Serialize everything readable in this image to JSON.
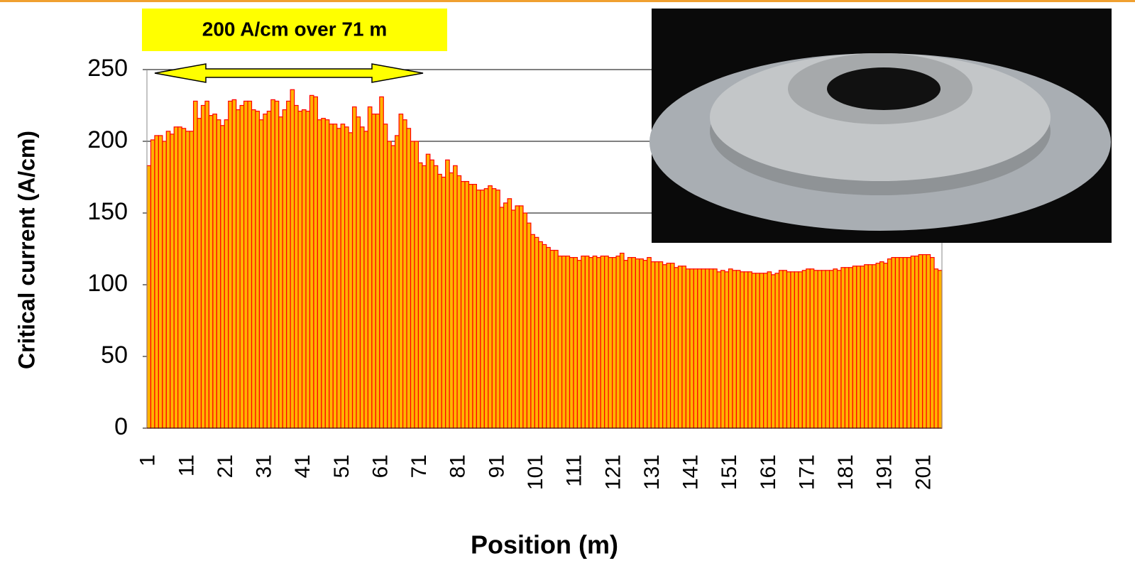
{
  "chart_data": {
    "type": "bar",
    "xlabel": "Position (m)",
    "ylabel": "Critical current (A/cm)",
    "annotation": "200 A/cm over 71 m",
    "categories": [
      "1",
      null,
      null,
      null,
      null,
      null,
      null,
      null,
      null,
      null,
      "11",
      null,
      null,
      null,
      null,
      null,
      null,
      null,
      null,
      null,
      "21",
      null,
      null,
      null,
      null,
      null,
      null,
      null,
      null,
      null,
      "31",
      null,
      null,
      null,
      null,
      null,
      null,
      null,
      null,
      null,
      "41",
      null,
      null,
      null,
      null,
      null,
      null,
      null,
      null,
      null,
      "51",
      null,
      null,
      null,
      null,
      null,
      null,
      null,
      null,
      null,
      "61",
      null,
      null,
      null,
      null,
      null,
      null,
      null,
      null,
      null,
      "71",
      null,
      null,
      null,
      null,
      null,
      null,
      null,
      null,
      null,
      "81",
      null,
      null,
      null,
      null,
      null,
      null,
      null,
      null,
      null,
      "91",
      null,
      null,
      null,
      null,
      null,
      null,
      null,
      null,
      null,
      "101",
      null,
      null,
      null,
      null,
      null,
      null,
      null,
      null,
      null,
      "111",
      null,
      null,
      null,
      null,
      null,
      null,
      null,
      null,
      null,
      "121",
      null,
      null,
      null,
      null,
      null,
      null,
      null,
      null,
      null,
      "131",
      null,
      null,
      null,
      null,
      null,
      null,
      null,
      null,
      null,
      "141",
      null,
      null,
      null,
      null,
      null,
      null,
      null,
      null,
      null,
      "151",
      null,
      null,
      null,
      null,
      null,
      null,
      null,
      null,
      null,
      "161",
      null,
      null,
      null,
      null,
      null,
      null,
      null,
      null,
      null,
      "171",
      null,
      null,
      null,
      null,
      null,
      null,
      null,
      null,
      null,
      "181",
      null,
      null,
      null,
      null,
      null,
      null,
      null,
      null,
      null,
      "191",
      null,
      null,
      null,
      null,
      null,
      null,
      null,
      null,
      null,
      "201",
      null,
      null,
      null,
      null
    ],
    "values": [
      183,
      201,
      204,
      204,
      200,
      207,
      205,
      210,
      210,
      209,
      207,
      207,
      228,
      216,
      225,
      228,
      218,
      219,
      215,
      211,
      215,
      228,
      229,
      222,
      225,
      228,
      228,
      222,
      221,
      215,
      219,
      221,
      229,
      228,
      217,
      222,
      228,
      236,
      225,
      221,
      222,
      221,
      232,
      231,
      215,
      216,
      215,
      212,
      212,
      209,
      212,
      210,
      206,
      224,
      217,
      210,
      207,
      224,
      219,
      219,
      231,
      212,
      200,
      197,
      204,
      219,
      215,
      209,
      200,
      200,
      185,
      183,
      191,
      187,
      183,
      177,
      175,
      187,
      178,
      183,
      176,
      172,
      172,
      170,
      170,
      166,
      166,
      167,
      169,
      167,
      166,
      154,
      157,
      160,
      152,
      155,
      155,
      150,
      143,
      135,
      133,
      130,
      128,
      126,
      124,
      124,
      120,
      120,
      120,
      119,
      119,
      117,
      120,
      120,
      119,
      120,
      119,
      120,
      120,
      119,
      119,
      120,
      122,
      117,
      119,
      119,
      118,
      118,
      117,
      119,
      116,
      116,
      116,
      114,
      115,
      115,
      112,
      113,
      113,
      111,
      111,
      111,
      111,
      111,
      111,
      111,
      111,
      109,
      110,
      109,
      111,
      110,
      110,
      109,
      109,
      109,
      108,
      108,
      108,
      108,
      109,
      107,
      108,
      110,
      110,
      109,
      109,
      109,
      109,
      110,
      111,
      111,
      110,
      110,
      110,
      110,
      110,
      111,
      110,
      112,
      112,
      112,
      113,
      113,
      113,
      114,
      114,
      114,
      115,
      116,
      115,
      118,
      119,
      119,
      119,
      119,
      119,
      120,
      120,
      121,
      121,
      121,
      119,
      111,
      110
    ],
    "color": "#ffb300",
    "edge_color": "#ff0000",
    "ylim": [
      0,
      250
    ],
    "yticks": [
      0,
      50,
      100,
      150,
      200,
      250
    ],
    "grid": true
  }
}
